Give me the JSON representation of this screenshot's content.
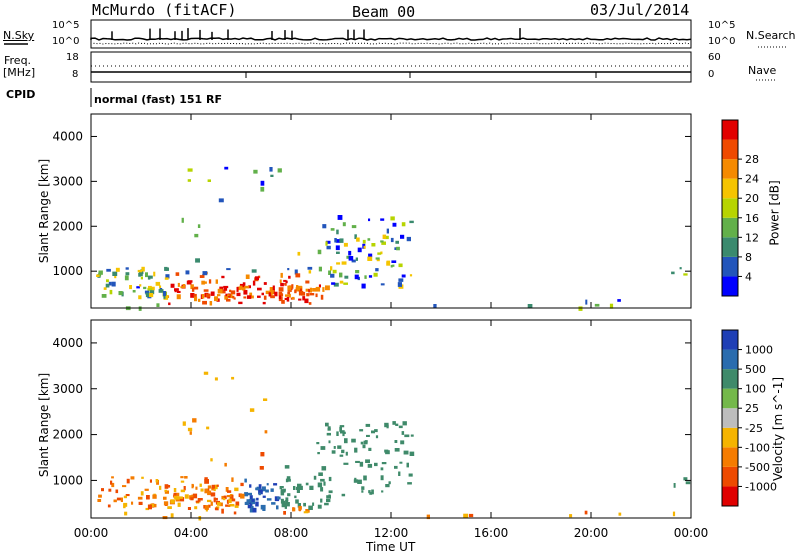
{
  "header": {
    "station": "McMurdo (fitACF)",
    "beam": "Beam 00",
    "date": "03/Jul/2014"
  },
  "top_panels": {
    "left_labels": {
      "nsky": "N.Sky",
      "freq": "Freq.",
      "mhz": "[MHz]",
      "cpid": "CPID"
    },
    "right_labels": {
      "nsearch": "N.Search",
      "nave": "Nave"
    },
    "nsky_ticks": [
      "10^5",
      "10^0"
    ],
    "nsearch_ticks": [
      "10^5",
      "10^0"
    ],
    "freq_ticks": [
      "18",
      "8"
    ],
    "nave_ticks": [
      "60",
      "0"
    ],
    "cpid_text": "normal (fast) 151 RF"
  },
  "chart_data": [
    {
      "type": "heatmap",
      "title": "",
      "xlabel": "",
      "ylabel": "Slant Range [km]",
      "xlim": [
        0,
        24
      ],
      "ylim": [
        180,
        4500
      ],
      "x_tick_labels": [],
      "y_tick_labels": [
        "1000",
        "2000",
        "3000",
        "4000"
      ],
      "y_ticks": [
        1000,
        2000,
        3000,
        4000
      ],
      "colorbar": {
        "label": "Power [dB]",
        "levels": [
          "4",
          "8",
          "12",
          "16",
          "20",
          "24",
          "28"
        ],
        "colors": [
          "#0000ff",
          "#2255bb",
          "#3a8a6e",
          "#62b04a",
          "#b7d400",
          "#f5c400",
          "#f58a00",
          "#ef4a00",
          "#e20000"
        ]
      }
    },
    {
      "type": "heatmap",
      "title": "",
      "xlabel": "Time UT",
      "ylabel": "Slant Range [km]",
      "xlim": [
        0,
        24
      ],
      "ylim": [
        180,
        4500
      ],
      "x_tick_labels": [
        "00:00",
        "04:00",
        "08:00",
        "12:00",
        "16:00",
        "20:00",
        "00:00"
      ],
      "x_ticks": [
        0,
        4,
        8,
        12,
        16,
        20,
        24
      ],
      "y_tick_labels": [
        "1000",
        "2000",
        "3000",
        "4000"
      ],
      "y_ticks": [
        1000,
        2000,
        3000,
        4000
      ],
      "colorbar": {
        "label": "Velocity [m s^-1]",
        "levels": [
          "1000",
          "500",
          "100",
          "25",
          "-25",
          "-100",
          "-500",
          "-1000"
        ],
        "colors": [
          "#1f3fb5",
          "#2a6cae",
          "#3f8a6a",
          "#74b84a",
          "#bdbdbd",
          "#f5b400",
          "#f57c00",
          "#ee4a00",
          "#e00000"
        ]
      }
    }
  ]
}
